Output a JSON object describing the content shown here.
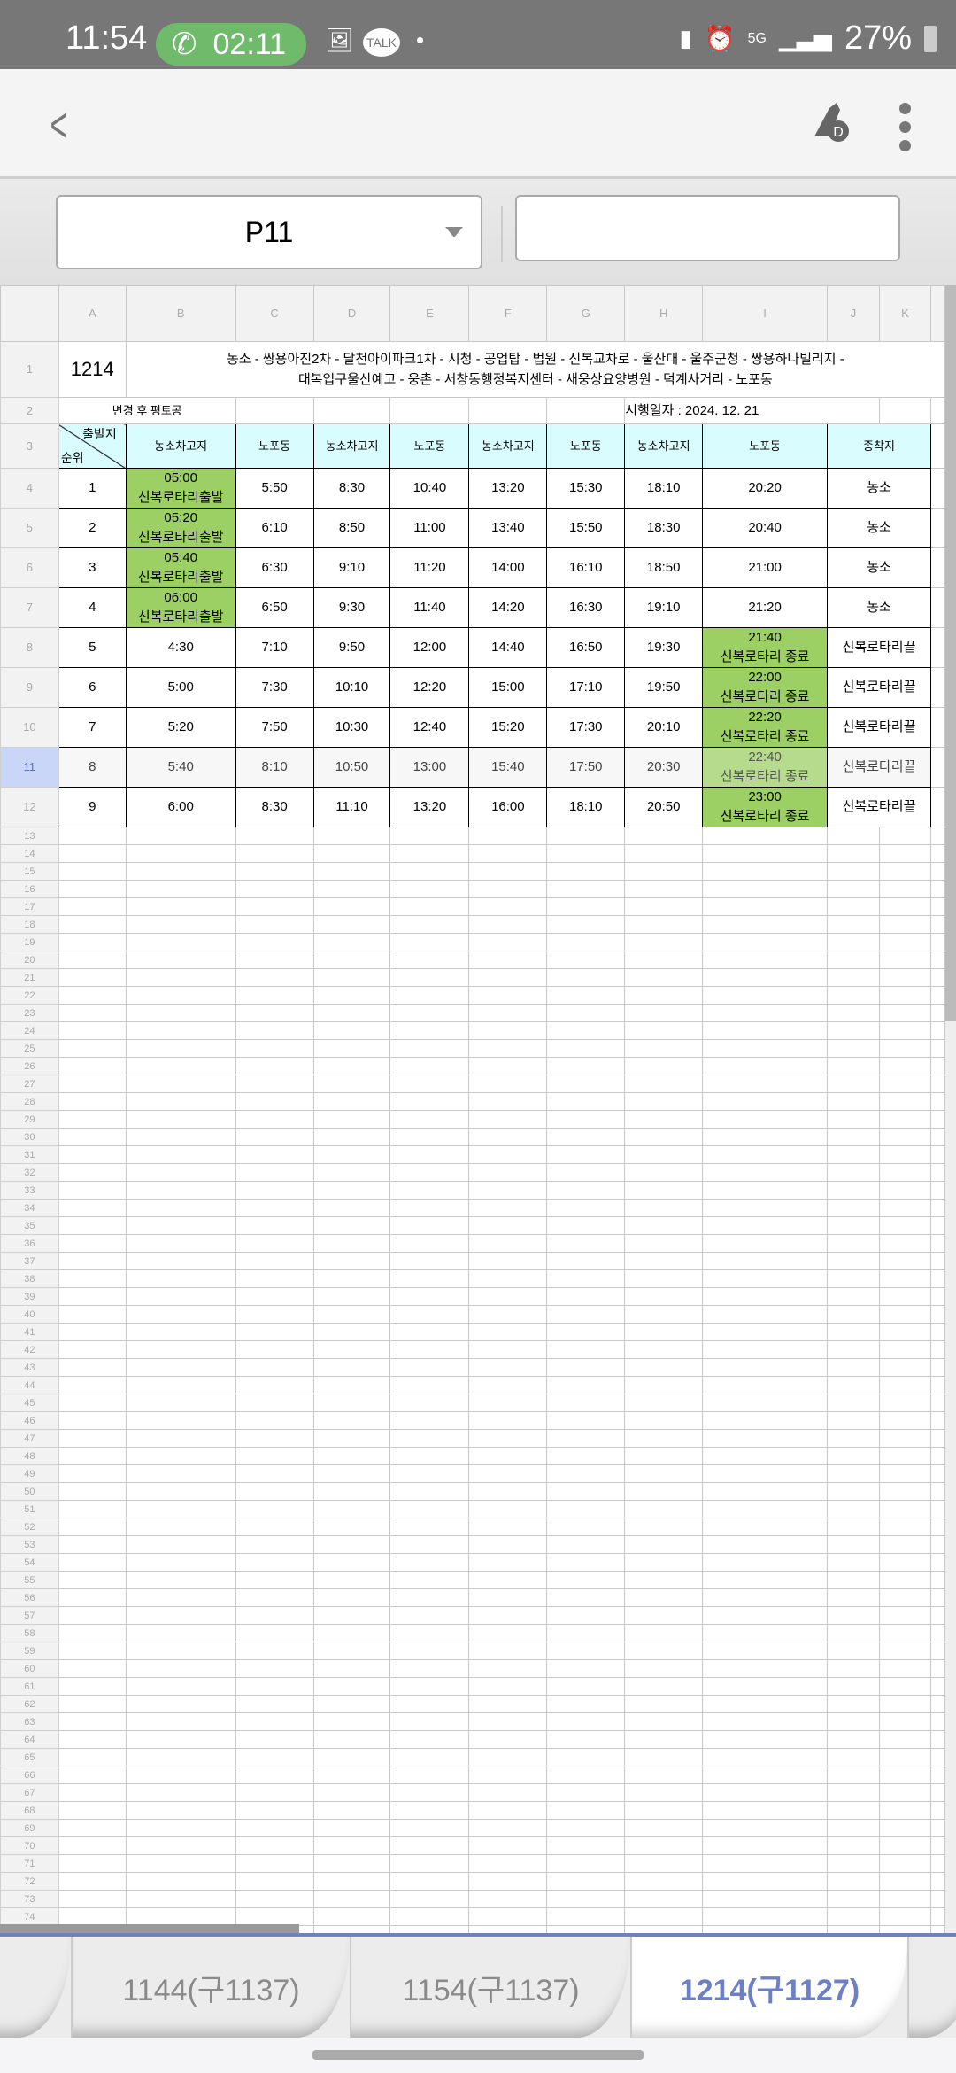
{
  "status_bar": {
    "time": "11:54",
    "call_timer": "02:11",
    "battery": "27%",
    "network": "5G",
    "icons": [
      "phone-icon",
      "gallery-icon",
      "kakaotalk-icon",
      "dot-icon",
      "battery-saver-icon",
      "alarm-icon",
      "5g-icon",
      "signal-icon",
      "battery-icon"
    ],
    "talk_label": "TALK"
  },
  "app_bar": {
    "icons": [
      "back-icon",
      "pen-mode-icon",
      "more-icon"
    ],
    "pen_badge": "D"
  },
  "formula_bar": {
    "name_box": "P11",
    "input_value": ""
  },
  "sheet": {
    "columns": [
      "A",
      "B",
      "C",
      "D",
      "E",
      "F",
      "G",
      "H",
      "I",
      "J",
      "K"
    ],
    "route_number": "1214",
    "route_line1": "농소 - 쌍용아진2차 - 달천아이파크1차 - 시청 - 공업탑 - 법원 - 신복교차로 - 울산대 - 울주군청 - 쌍용하나빌리지 -",
    "route_line2": "대복입구울산예고 - 웅촌 - 서창동행정복지센터 - 새웅상요양병원 - 덕계사거리 - 노포동",
    "note": "변경 후 평토공",
    "effective_date": "시행일자 : 2024. 12. 21",
    "diag_top": "출발지",
    "diag_bottom": "순위",
    "headers": [
      "농소차고지",
      "노포동",
      "농소차고지",
      "노포동",
      "농소차고지",
      "노포동",
      "농소차고지",
      "노포동",
      "종착지"
    ],
    "rows": [
      {
        "n": "1",
        "first": [
          "05:00",
          "신복로타리출발"
        ],
        "times": [
          "5:50",
          "8:30",
          "10:40",
          "13:20",
          "15:30",
          "18:10"
        ],
        "last": [
          "20:20"
        ],
        "end": "농소"
      },
      {
        "n": "2",
        "first": [
          "05:20",
          "신복로타리출발"
        ],
        "times": [
          "6:10",
          "8:50",
          "11:00",
          "13:40",
          "15:50",
          "18:30"
        ],
        "last": [
          "20:40"
        ],
        "end": "농소"
      },
      {
        "n": "3",
        "first": [
          "05:40",
          "신복로타리출발"
        ],
        "times": [
          "6:30",
          "9:10",
          "11:20",
          "14:00",
          "16:10",
          "18:50"
        ],
        "last": [
          "21:00"
        ],
        "end": "농소"
      },
      {
        "n": "4",
        "first": [
          "06:00",
          "신복로타리출발"
        ],
        "times": [
          "6:50",
          "9:30",
          "11:40",
          "14:20",
          "16:30",
          "19:10"
        ],
        "last": [
          "21:20"
        ],
        "end": "농소"
      },
      {
        "n": "5",
        "first": [
          "4:30"
        ],
        "times": [
          "7:10",
          "9:50",
          "12:00",
          "14:40",
          "16:50",
          "19:30"
        ],
        "last": [
          "21:40",
          "신복로타리 종료"
        ],
        "end": "신복로타리끝"
      },
      {
        "n": "6",
        "first": [
          "5:00"
        ],
        "times": [
          "7:30",
          "10:10",
          "12:20",
          "15:00",
          "17:10",
          "19:50"
        ],
        "last": [
          "22:00",
          "신복로타리 종료"
        ],
        "end": "신복로타리끝"
      },
      {
        "n": "7",
        "first": [
          "5:20"
        ],
        "times": [
          "7:50",
          "10:30",
          "12:40",
          "15:20",
          "17:30",
          "20:10"
        ],
        "last": [
          "22:20",
          "신복로타리 종료"
        ],
        "end": "신복로타리끝"
      },
      {
        "n": "8",
        "first": [
          "5:40"
        ],
        "times": [
          "8:10",
          "10:50",
          "13:00",
          "15:40",
          "17:50",
          "20:30"
        ],
        "last": [
          "22:40",
          "신복로타리 종료"
        ],
        "end": "신복로타리끝"
      },
      {
        "n": "9",
        "first": [
          "6:00"
        ],
        "times": [
          "8:30",
          "11:10",
          "13:20",
          "16:00",
          "18:10",
          "20:50"
        ],
        "last": [
          "23:00",
          "신복로타리 종료"
        ],
        "end": "신복로타리끝"
      }
    ],
    "selected_row": 11,
    "empty_rows": {
      "from": 13,
      "to": 74
    },
    "colors": {
      "header_fill": "#d9fcff",
      "highlight_fill": "#9ccf64",
      "active_tab": "#6b80c8"
    }
  },
  "sheet_tabs": [
    {
      "label": "1144(구1137)",
      "active": false
    },
    {
      "label": "1154(구1137)",
      "active": false
    },
    {
      "label": "1214(구1127)",
      "active": true
    }
  ]
}
